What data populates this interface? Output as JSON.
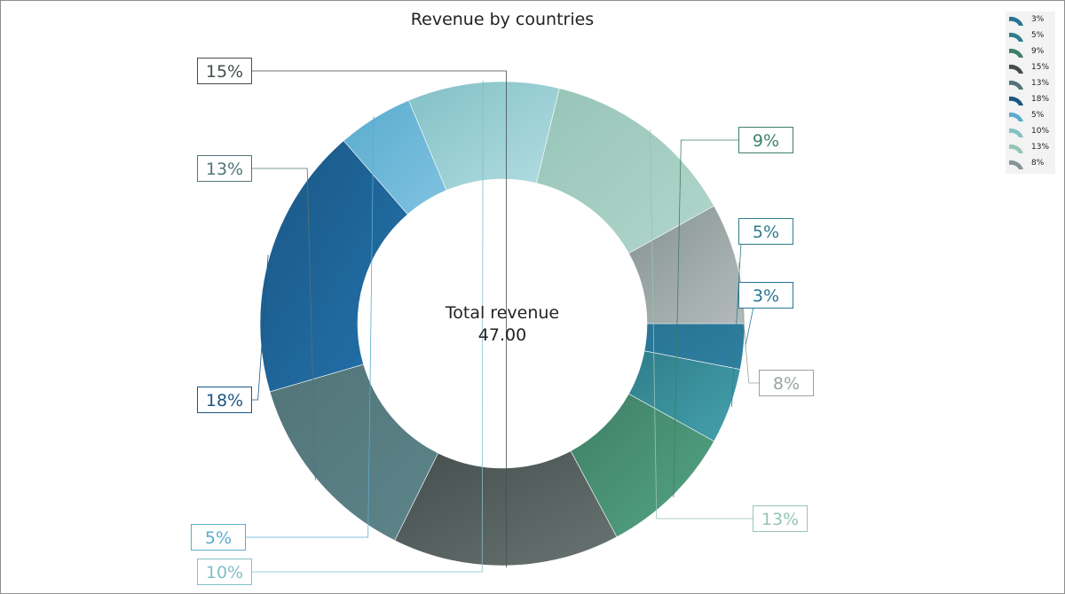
{
  "chart_data": {
    "type": "pie",
    "variant": "donut",
    "title": "Revenue by countries",
    "center_label": "Total revenue",
    "center_value": "47.00",
    "slices": [
      {
        "label": "3%",
        "value": 3,
        "color": "#287495",
        "color_light": "#2f7fa0"
      },
      {
        "label": "5%",
        "value": 5,
        "color": "#2f7d8a",
        "color_light": "#45a2ad"
      },
      {
        "label": "9%",
        "value": 9,
        "color": "#3f7f66",
        "color_light": "#54a585"
      },
      {
        "label": "15%",
        "value": 15,
        "color": "#444e4d",
        "color_light": "#687472"
      },
      {
        "label": "13%",
        "value": 13,
        "color": "#527478",
        "color_light": "#5c858a"
      },
      {
        "label": "18%",
        "value": 18,
        "color": "#1a5784",
        "color_light": "#2372ad"
      },
      {
        "label": "5%",
        "value": 5,
        "color": "#5aaccf",
        "color_light": "#80c2e0"
      },
      {
        "label": "10%",
        "value": 10,
        "color": "#82c0c6",
        "color_light": "#b2dde2"
      },
      {
        "label": "13%",
        "value": 13,
        "color": "#97c4b7",
        "color_light": "#b0d6cb"
      },
      {
        "label": "8%",
        "value": 8,
        "color": "#869493",
        "color_light": "#b3bbba"
      }
    ],
    "label_colors": [
      "#287495",
      "#2f7d8a",
      "#3f7f66",
      "#444e4d",
      "#527478",
      "#1a5784",
      "#5aaccf",
      "#82c0c6",
      "#97c4b7",
      "#9aa3a2"
    ],
    "legend_placement": "top-right"
  }
}
